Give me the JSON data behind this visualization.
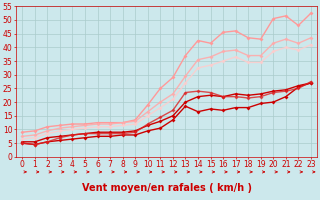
{
  "background_color": "#cce8ec",
  "grid_color": "#aacccc",
  "xlabel": "Vent moyen/en rafales ( km/h )",
  "xlim": [
    -0.5,
    23.5
  ],
  "ylim": [
    0,
    55
  ],
  "yticks": [
    0,
    5,
    10,
    15,
    20,
    25,
    30,
    35,
    40,
    45,
    50,
    55
  ],
  "xticks": [
    0,
    1,
    2,
    3,
    4,
    5,
    6,
    7,
    8,
    9,
    10,
    11,
    12,
    13,
    14,
    15,
    16,
    17,
    18,
    19,
    20,
    21,
    22,
    23
  ],
  "series": [
    {
      "x": [
        0,
        1,
        2,
        3,
        4,
        5,
        6,
        7,
        8,
        9,
        10,
        11,
        12,
        13,
        14,
        15,
        16,
        17,
        18,
        19,
        20,
        21,
        22,
        23
      ],
      "y": [
        5.0,
        4.5,
        5.5,
        6.0,
        6.5,
        7.0,
        7.5,
        7.5,
        8.0,
        8.0,
        9.5,
        10.5,
        13.5,
        18.5,
        16.5,
        17.5,
        17.0,
        18.0,
        18.0,
        19.5,
        20.0,
        22.0,
        25.5,
        27.0
      ],
      "color": "#cc0000",
      "linewidth": 1.0,
      "marker": "D",
      "markersize": 2.0,
      "alpha": 1.0
    },
    {
      "x": [
        0,
        1,
        2,
        3,
        4,
        5,
        6,
        7,
        8,
        9,
        10,
        11,
        12,
        13,
        14,
        15,
        16,
        17,
        18,
        19,
        20,
        21,
        22,
        23
      ],
      "y": [
        5.5,
        5.5,
        7.0,
        7.5,
        8.0,
        8.5,
        9.0,
        9.0,
        9.0,
        9.5,
        11.5,
        13.0,
        15.0,
        20.0,
        22.0,
        22.5,
        22.0,
        23.0,
        22.5,
        23.0,
        24.0,
        24.5,
        26.0,
        27.0
      ],
      "color": "#cc0000",
      "linewidth": 1.0,
      "marker": "D",
      "markersize": 2.0,
      "alpha": 1.0
    },
    {
      "x": [
        0,
        1,
        2,
        3,
        4,
        5,
        6,
        7,
        8,
        9,
        10,
        11,
        12,
        13,
        14,
        15,
        16,
        17,
        18,
        19,
        20,
        21,
        22,
        23
      ],
      "y": [
        5.0,
        4.5,
        5.5,
        7.0,
        8.0,
        8.5,
        8.5,
        8.5,
        8.5,
        9.0,
        12.0,
        14.5,
        17.0,
        23.5,
        24.0,
        23.5,
        22.0,
        22.0,
        21.5,
        22.0,
        23.5,
        24.0,
        25.0,
        27.5
      ],
      "color": "#dd2222",
      "linewidth": 1.0,
      "marker": "D",
      "markersize": 2.0,
      "alpha": 0.8
    },
    {
      "x": [
        0,
        1,
        2,
        3,
        4,
        5,
        6,
        7,
        8,
        9,
        10,
        11,
        12,
        13,
        14,
        15,
        16,
        17,
        18,
        19,
        20,
        21,
        22,
        23
      ],
      "y": [
        9.0,
        9.5,
        11.0,
        11.5,
        12.0,
        12.0,
        12.5,
        12.5,
        12.5,
        13.5,
        19.0,
        25.0,
        29.0,
        37.0,
        42.5,
        41.5,
        45.5,
        46.0,
        43.5,
        43.0,
        50.5,
        51.5,
        48.0,
        52.5
      ],
      "color": "#ff9999",
      "linewidth": 1.0,
      "marker": "D",
      "markersize": 2.0,
      "alpha": 1.0
    },
    {
      "x": [
        0,
        1,
        2,
        3,
        4,
        5,
        6,
        7,
        8,
        9,
        10,
        11,
        12,
        13,
        14,
        15,
        16,
        17,
        18,
        19,
        20,
        21,
        22,
        23
      ],
      "y": [
        7.5,
        8.0,
        9.5,
        10.5,
        11.0,
        11.5,
        12.0,
        12.0,
        12.5,
        13.0,
        16.5,
        20.0,
        23.0,
        29.5,
        35.5,
        36.5,
        38.5,
        39.0,
        37.0,
        37.0,
        41.5,
        43.0,
        41.5,
        43.5
      ],
      "color": "#ffaaaa",
      "linewidth": 1.0,
      "marker": "D",
      "markersize": 2.0,
      "alpha": 0.9
    },
    {
      "x": [
        0,
        1,
        2,
        3,
        4,
        5,
        6,
        7,
        8,
        9,
        10,
        11,
        12,
        13,
        14,
        15,
        16,
        17,
        18,
        19,
        20,
        21,
        22,
        23
      ],
      "y": [
        6.5,
        7.0,
        8.5,
        9.5,
        10.0,
        10.5,
        11.0,
        11.0,
        11.5,
        12.0,
        15.0,
        18.0,
        21.0,
        27.0,
        32.5,
        33.5,
        35.0,
        36.5,
        34.5,
        34.5,
        38.5,
        40.0,
        39.0,
        41.0
      ],
      "color": "#ffcccc",
      "linewidth": 1.0,
      "marker": "D",
      "markersize": 2.0,
      "alpha": 0.85
    }
  ],
  "arrow_color": "#cc0000",
  "xlabel_color": "#cc0000",
  "xlabel_fontsize": 7,
  "tick_fontsize": 5.5,
  "tick_color": "#cc0000"
}
